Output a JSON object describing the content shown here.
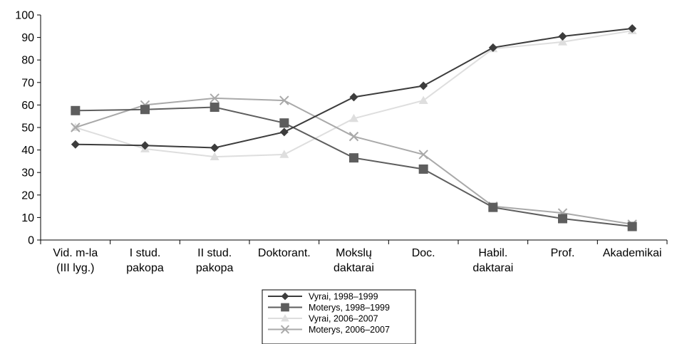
{
  "chart_data": {
    "type": "line",
    "categories": [
      [
        "Vid. m-la",
        "(III lyg.)"
      ],
      [
        "I stud.",
        "pakopa"
      ],
      [
        "II stud.",
        "pakopa"
      ],
      [
        "Doktorant."
      ],
      [
        "Mokslų",
        "daktarai"
      ],
      [
        "Doc."
      ],
      [
        "Habil.",
        "daktarai"
      ],
      [
        "Prof."
      ],
      [
        "Akademikai"
      ]
    ],
    "ylim": [
      0,
      100
    ],
    "yticks": [
      0,
      10,
      20,
      30,
      40,
      50,
      60,
      70,
      80,
      90,
      100
    ],
    "grid": false,
    "legend_position": "bottom-center",
    "series": [
      {
        "name": "Vyrai, 1998–1999",
        "marker": "diamond",
        "color": "#3c3c3c",
        "values": [
          42.5,
          42,
          41,
          48,
          63.5,
          68.5,
          85.5,
          90.5,
          94
        ]
      },
      {
        "name": "Moterys, 1998–1999",
        "marker": "square",
        "color": "#5e5e5e",
        "values": [
          57.5,
          58,
          59,
          52,
          36.5,
          31.5,
          14.5,
          9.5,
          6
        ]
      },
      {
        "name": "Vyrai, 2006–2007",
        "marker": "triangle",
        "color": "#dedede",
        "values": [
          50,
          40.5,
          37,
          38,
          54,
          62,
          85,
          88,
          93
        ]
      },
      {
        "name": "Moterys, 2006–2007",
        "marker": "x",
        "color": "#a9a9a9",
        "values": [
          50,
          60,
          63,
          62,
          46,
          38,
          15,
          12,
          7
        ]
      }
    ]
  }
}
